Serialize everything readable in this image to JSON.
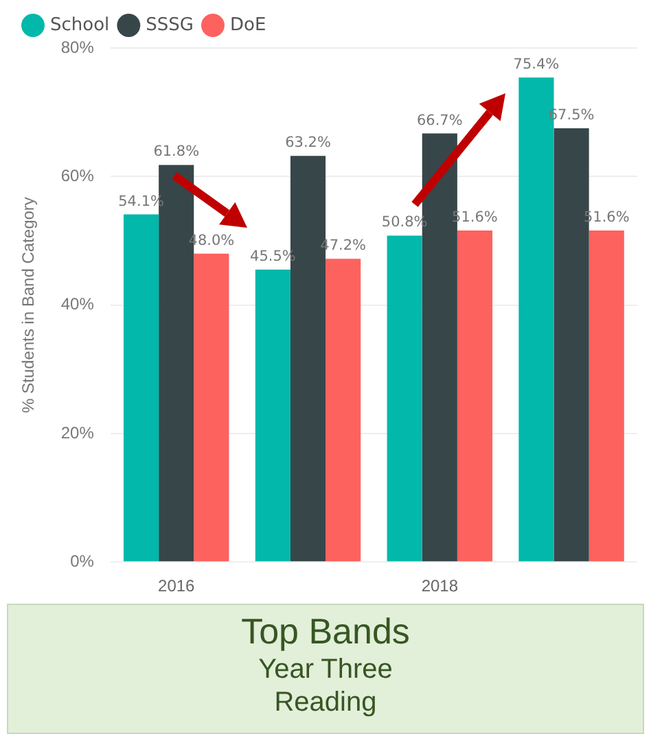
{
  "chart_data": {
    "type": "bar",
    "title": "Top Bands",
    "subtitle": "Year Three",
    "annotations": [
      "Reading"
    ],
    "ylabel": "% Students in Band Category",
    "categories": [
      "2016",
      null,
      "2018",
      null
    ],
    "series": [
      {
        "name": "School",
        "color": "#01b8aa",
        "values": [
          54.1,
          45.5,
          50.8,
          75.4
        ],
        "value_labels": [
          "54.1%",
          "45.5%",
          "50.8%",
          "75.4%"
        ]
      },
      {
        "name": "SSSG",
        "color": "#374649",
        "values": [
          61.8,
          63.2,
          66.7,
          67.5
        ],
        "value_labels": [
          "61.8%",
          "63.2%",
          "66.7%",
          "67.5%"
        ]
      },
      {
        "name": "DoE",
        "color": "#fd625e",
        "values": [
          48.0,
          47.2,
          51.6,
          51.6
        ],
        "value_labels": [
          "48.0%",
          "47.2%",
          "51.6%",
          "51.6%"
        ]
      }
    ],
    "ylim": [
      0,
      80
    ],
    "yticks": [
      {
        "value": 0,
        "label": "0%"
      },
      {
        "value": 20,
        "label": "20%"
      },
      {
        "value": 40,
        "label": "40%"
      },
      {
        "value": 60,
        "label": "60%"
      },
      {
        "value": 80,
        "label": "80%"
      }
    ],
    "grid": "y",
    "legend": "top left"
  }
}
